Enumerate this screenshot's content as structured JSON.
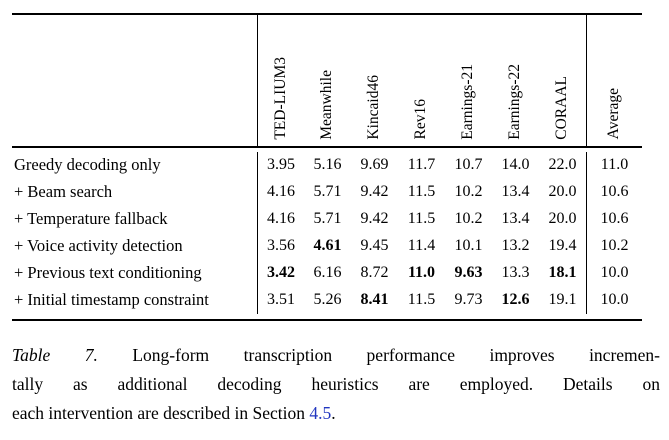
{
  "table": {
    "columns": [
      "TED-LIUM3",
      "Meanwhile",
      "Kincaid46",
      "Rev16",
      "Earnings-21",
      "Earnings-22",
      "CORAAL",
      "Average"
    ],
    "rows": [
      {
        "label": "Greedy decoding only",
        "values": [
          "3.95",
          "5.16",
          "9.69",
          "11.7",
          "10.7",
          "14.0",
          "22.0"
        ],
        "average": "11.0",
        "bold": []
      },
      {
        "label": "+ Beam search",
        "values": [
          "4.16",
          "5.71",
          "9.42",
          "11.5",
          "10.2",
          "13.4",
          "20.0"
        ],
        "average": "10.6",
        "bold": []
      },
      {
        "label": "+ Temperature fallback",
        "values": [
          "4.16",
          "5.71",
          "9.42",
          "11.5",
          "10.2",
          "13.4",
          "20.0"
        ],
        "average": "10.6",
        "bold": []
      },
      {
        "label": "+ Voice activity detection",
        "values": [
          "3.56",
          "4.61",
          "9.45",
          "11.4",
          "10.1",
          "13.2",
          "19.4"
        ],
        "average": "10.2",
        "bold": [
          1
        ]
      },
      {
        "label": "+ Previous text conditioning",
        "values": [
          "3.42",
          "6.16",
          "8.72",
          "11.0",
          "9.63",
          "13.3",
          "18.1"
        ],
        "average": "10.0",
        "bold": [
          0,
          3,
          4,
          6
        ]
      },
      {
        "label": "+ Initial timestamp constraint",
        "values": [
          "3.51",
          "5.26",
          "8.41",
          "11.5",
          "9.73",
          "12.6",
          "19.1"
        ],
        "average": "10.0",
        "bold": [
          2,
          5
        ]
      }
    ]
  },
  "caption": {
    "table_label": "Table 7.",
    "line1": "Long-form transcription performance improves incremen-",
    "line2": "tally as additional decoding heuristics are employed. Details on",
    "line3_before_link": "each intervention are described in Section ",
    "link_text": "4.5",
    "line3_after_link": "."
  },
  "colors": {
    "text": "#000000",
    "background": "#ffffff",
    "link": "#2136c0"
  }
}
